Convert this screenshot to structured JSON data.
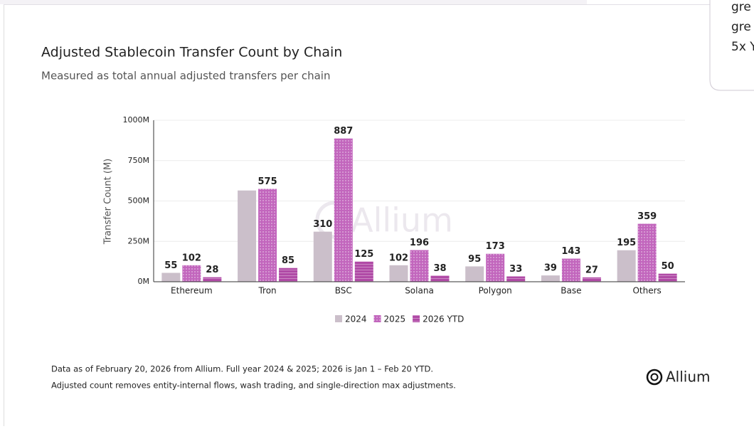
{
  "chart_data": {
    "type": "bar",
    "title": "Adjusted Stablecoin Transfer Count by Chain",
    "subtitle": "Measured as total annual adjusted transfers per chain",
    "y_label": "Transfer Count (M)",
    "watermark": "Allium",
    "categories": [
      "Ethereum",
      "Tron",
      "BSC",
      "Solana",
      "Polygon",
      "Base",
      "Others"
    ],
    "series": [
      {
        "name": "2024",
        "color": "#cbbfca",
        "pattern": "none",
        "values": [
          55,
          565,
          310,
          102,
          95,
          39,
          195
        ],
        "value_labels": [
          "55",
          null,
          "310",
          "102",
          "95",
          "39",
          "195"
        ]
      },
      {
        "name": "2025",
        "color": "#c266bd",
        "pattern": "dots",
        "values": [
          102,
          575,
          887,
          196,
          173,
          143,
          359
        ]
      },
      {
        "name": "2026 YTD",
        "color": "#b04aa6",
        "pattern": "stripes",
        "values": [
          28,
          85,
          125,
          38,
          33,
          27,
          50
        ]
      }
    ],
    "ylim": [
      0,
      1000
    ],
    "yticks": [
      {
        "value": 0,
        "label": "0M"
      },
      {
        "value": 250,
        "label": "250M"
      },
      {
        "value": 500,
        "label": "500M"
      },
      {
        "value": 750,
        "label": "750M"
      },
      {
        "value": 1000,
        "label": "1000M"
      }
    ],
    "grid": true,
    "legend": "bottom",
    "footnotes": [
      "Data as of February 20, 2026 from Allium. Full year 2024 & 2025; 2026 is Jan 1 – Feb 20 YTD.",
      "Adjusted count removes entity-internal flows, wash trading, and single-direction max adjustments."
    ],
    "logo": "Allium"
  },
  "overlay": {
    "lines": [
      "gre",
      "gre",
      "5x Y"
    ]
  }
}
